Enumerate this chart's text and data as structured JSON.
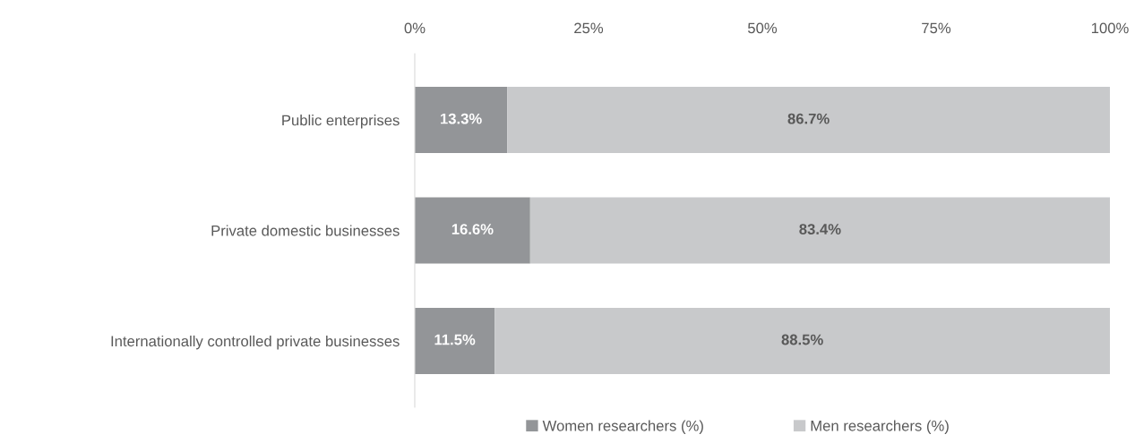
{
  "chart_data": {
    "type": "bar",
    "orientation": "horizontal",
    "stacked": true,
    "categories": [
      "Public enterprises",
      "Private domestic businesses",
      "Internationally controlled private businesses"
    ],
    "series": [
      {
        "name": "Women researchers (%)",
        "color": "#939598",
        "values": [
          13.3,
          16.6,
          11.5
        ],
        "value_labels": [
          "13.3%",
          "16.6%",
          "11.5%"
        ]
      },
      {
        "name": "Men researchers (%)",
        "color": "#c8c9cb",
        "values": [
          86.7,
          83.4,
          88.5
        ],
        "value_labels": [
          "86.7%",
          "83.4%",
          "88.5%"
        ]
      }
    ],
    "xlim": [
      0,
      100
    ],
    "xticks": [
      {
        "value": 0,
        "label": "0%"
      },
      {
        "value": 25,
        "label": "25%"
      },
      {
        "value": 50,
        "label": "50%"
      },
      {
        "value": 75,
        "label": "75%"
      },
      {
        "value": 100,
        "label": "100%"
      }
    ],
    "grid": false,
    "legend": "bottom"
  }
}
